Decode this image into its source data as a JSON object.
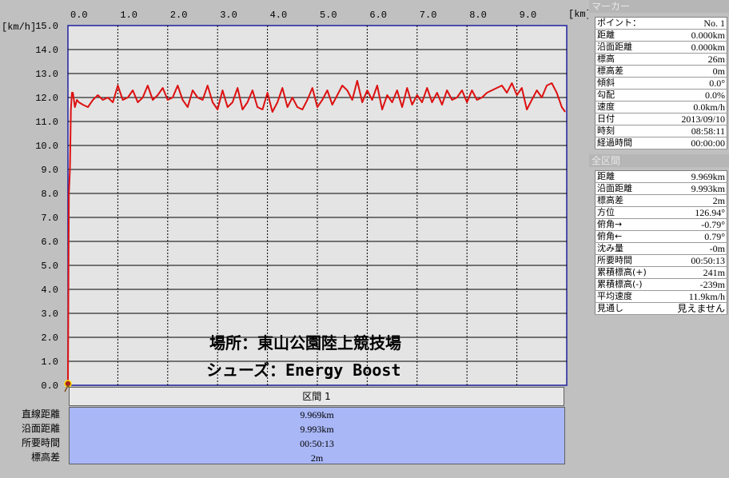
{
  "chart_data": {
    "type": "line",
    "x_unit": "[km]",
    "y_unit": "[km/h]",
    "xlim": [
      0,
      10
    ],
    "ylim": [
      0,
      15
    ],
    "x_ticks": [
      "0.0",
      "1.0",
      "2.0",
      "3.0",
      "4.0",
      "5.0",
      "6.0",
      "7.0",
      "8.0",
      "9.0"
    ],
    "y_ticks": [
      "15.0",
      "14.0",
      "13.0",
      "12.0",
      "11.0",
      "10.0",
      "9.0",
      "8.0",
      "7.0",
      "6.0",
      "5.0",
      "4.0",
      "3.0",
      "2.0",
      "1.0",
      "0.0"
    ],
    "series": [
      {
        "color": "#dd1010",
        "x": [
          0.0,
          0.02,
          0.04,
          0.06,
          0.08,
          0.1,
          0.14,
          0.18,
          0.22,
          0.3,
          0.4,
          0.5,
          0.6,
          0.7,
          0.8,
          0.9,
          1.0,
          1.1,
          1.2,
          1.3,
          1.4,
          1.5,
          1.6,
          1.7,
          1.8,
          1.9,
          2.0,
          2.1,
          2.2,
          2.3,
          2.4,
          2.5,
          2.6,
          2.7,
          2.8,
          2.9,
          3.0,
          3.1,
          3.2,
          3.3,
          3.4,
          3.5,
          3.6,
          3.7,
          3.8,
          3.9,
          4.0,
          4.1,
          4.2,
          4.3,
          4.4,
          4.5,
          4.6,
          4.7,
          4.8,
          4.9,
          5.0,
          5.1,
          5.2,
          5.3,
          5.4,
          5.5,
          5.6,
          5.7,
          5.8,
          5.9,
          6.0,
          6.1,
          6.2,
          6.3,
          6.4,
          6.5,
          6.6,
          6.7,
          6.8,
          6.9,
          7.0,
          7.1,
          7.2,
          7.3,
          7.4,
          7.5,
          7.6,
          7.7,
          7.8,
          7.9,
          8.0,
          8.1,
          8.2,
          8.3,
          8.4,
          8.5,
          8.6,
          8.7,
          8.8,
          8.9,
          9.0,
          9.1,
          9.2,
          9.3,
          9.4,
          9.5,
          9.6,
          9.7,
          9.8,
          9.9,
          9.969
        ],
        "y": [
          0.0,
          8.0,
          9.0,
          11.5,
          12.2,
          12.2,
          11.6,
          11.9,
          11.8,
          11.7,
          11.6,
          11.9,
          12.1,
          11.9,
          12.0,
          11.8,
          12.5,
          11.9,
          12.0,
          12.3,
          11.8,
          12.0,
          12.5,
          11.9,
          12.1,
          12.4,
          11.9,
          12.0,
          12.5,
          11.9,
          11.6,
          12.3,
          12.0,
          11.9,
          12.5,
          11.8,
          11.5,
          12.3,
          11.6,
          11.8,
          12.4,
          11.5,
          11.8,
          12.3,
          11.6,
          11.5,
          12.2,
          11.4,
          11.8,
          12.4,
          11.6,
          12.0,
          11.6,
          11.5,
          11.9,
          12.4,
          11.6,
          11.9,
          12.3,
          11.7,
          12.1,
          12.5,
          12.3,
          11.9,
          12.7,
          11.8,
          12.3,
          11.9,
          12.5,
          11.5,
          12.1,
          11.8,
          12.3,
          11.6,
          12.4,
          11.7,
          12.1,
          11.8,
          12.4,
          11.8,
          12.2,
          11.7,
          12.3,
          11.9,
          12.0,
          12.3,
          11.8,
          12.3,
          11.9,
          12.0,
          12.2,
          12.3,
          12.4,
          12.5,
          12.2,
          12.6,
          12.1,
          12.4,
          11.5,
          11.9,
          12.3,
          12.0,
          12.5,
          12.6,
          12.2,
          11.6,
          11.4
        ]
      }
    ]
  },
  "overlay": {
    "location": "場所：東山公園陸上競技場",
    "shoes": "シューズ：Energy Boost"
  },
  "section": {
    "title": "区間 1",
    "rows": [
      {
        "label": "直線距離",
        "value": "9.969km"
      },
      {
        "label": "沿面距離",
        "value": "9.993km"
      },
      {
        "label": "所要時間",
        "value": "00:50:13"
      },
      {
        "label": "標高差",
        "value": "2m"
      }
    ]
  },
  "marker": {
    "title": "マーカー",
    "rows": [
      {
        "key": "ポイント：",
        "value": "No. 1"
      },
      {
        "key": "距離",
        "value": "0.000km"
      },
      {
        "key": "沿面距離",
        "value": "0.000km"
      },
      {
        "key": "標高",
        "value": "26m"
      },
      {
        "key": "標高差",
        "value": "0m"
      },
      {
        "key": "傾斜",
        "value": "0.0°"
      },
      {
        "key": "勾配",
        "value": "0.0%"
      },
      {
        "key": "速度",
        "value": "0.0km/h"
      },
      {
        "key": "日付",
        "value": "2013/09/10"
      },
      {
        "key": "時刻",
        "value": "08:58:11"
      },
      {
        "key": "経過時間",
        "value": "00:00:00"
      }
    ]
  },
  "total": {
    "title": "全区間",
    "rows": [
      {
        "key": "距離",
        "value": "9.969km"
      },
      {
        "key": "沿面距離",
        "value": "9.993km"
      },
      {
        "key": "標高差",
        "value": "2m"
      },
      {
        "key": "方位",
        "value": "126.94°"
      },
      {
        "key": "俯角→",
        "value": "-0.79°"
      },
      {
        "key": "俯角←",
        "value": "0.79°"
      },
      {
        "key": "沈み量",
        "value": "-0m"
      },
      {
        "key": "所要時間",
        "value": "00:50:13"
      },
      {
        "key": "累積標高(+)",
        "value": "241m"
      },
      {
        "key": "累積標高(-)",
        "value": "-239m"
      },
      {
        "key": "平均速度",
        "value": "11.9km/h"
      },
      {
        "key": "見通し",
        "value": "見えません"
      }
    ]
  }
}
